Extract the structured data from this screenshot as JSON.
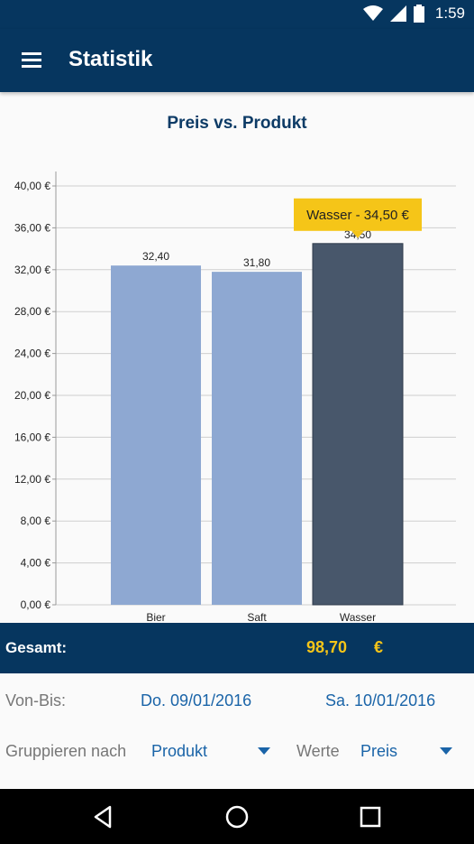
{
  "status_bar": {
    "time": "1:59",
    "icons": [
      "wifi-icon",
      "signal-icon",
      "battery-icon"
    ]
  },
  "app_bar": {
    "title": "Statistik",
    "menu_icon": "hamburger-menu-icon"
  },
  "chart_data": {
    "type": "bar",
    "title": "Preis vs. Produkt",
    "categories": [
      "Bier",
      "Saft",
      "Wasser"
    ],
    "values": [
      32.4,
      31.8,
      34.5
    ],
    "value_labels": [
      "32,40",
      "31,80",
      "34,50"
    ],
    "ylim": [
      0,
      40
    ],
    "y_ticks": [
      "0,00 €",
      "4,00 €",
      "8,00 €",
      "12,00 €",
      "16,00 €",
      "20,00 €",
      "24,00 €",
      "28,00 €",
      "32,00 €",
      "36,00 €",
      "40,00 €"
    ],
    "grid": true,
    "selected_index": 2,
    "tooltip": "Wasser - 34,50 €",
    "colors": {
      "bar": "#8ea8d2",
      "selected": "#48576b",
      "tooltip": "#f5c518"
    }
  },
  "summary": {
    "label": "Gesamt:",
    "value": "98,70",
    "currency": "€"
  },
  "filters": {
    "date_range_label": "Von-Bis:",
    "from": "Do. 09/01/2016",
    "to": "Sa. 10/01/2016",
    "group_by_label": "Gruppieren nach",
    "group_by_value": "Produkt",
    "values_label": "Werte",
    "values_value": "Preis"
  },
  "nav_bar": {
    "buttons": [
      "back-icon",
      "home-icon",
      "recents-icon"
    ]
  }
}
